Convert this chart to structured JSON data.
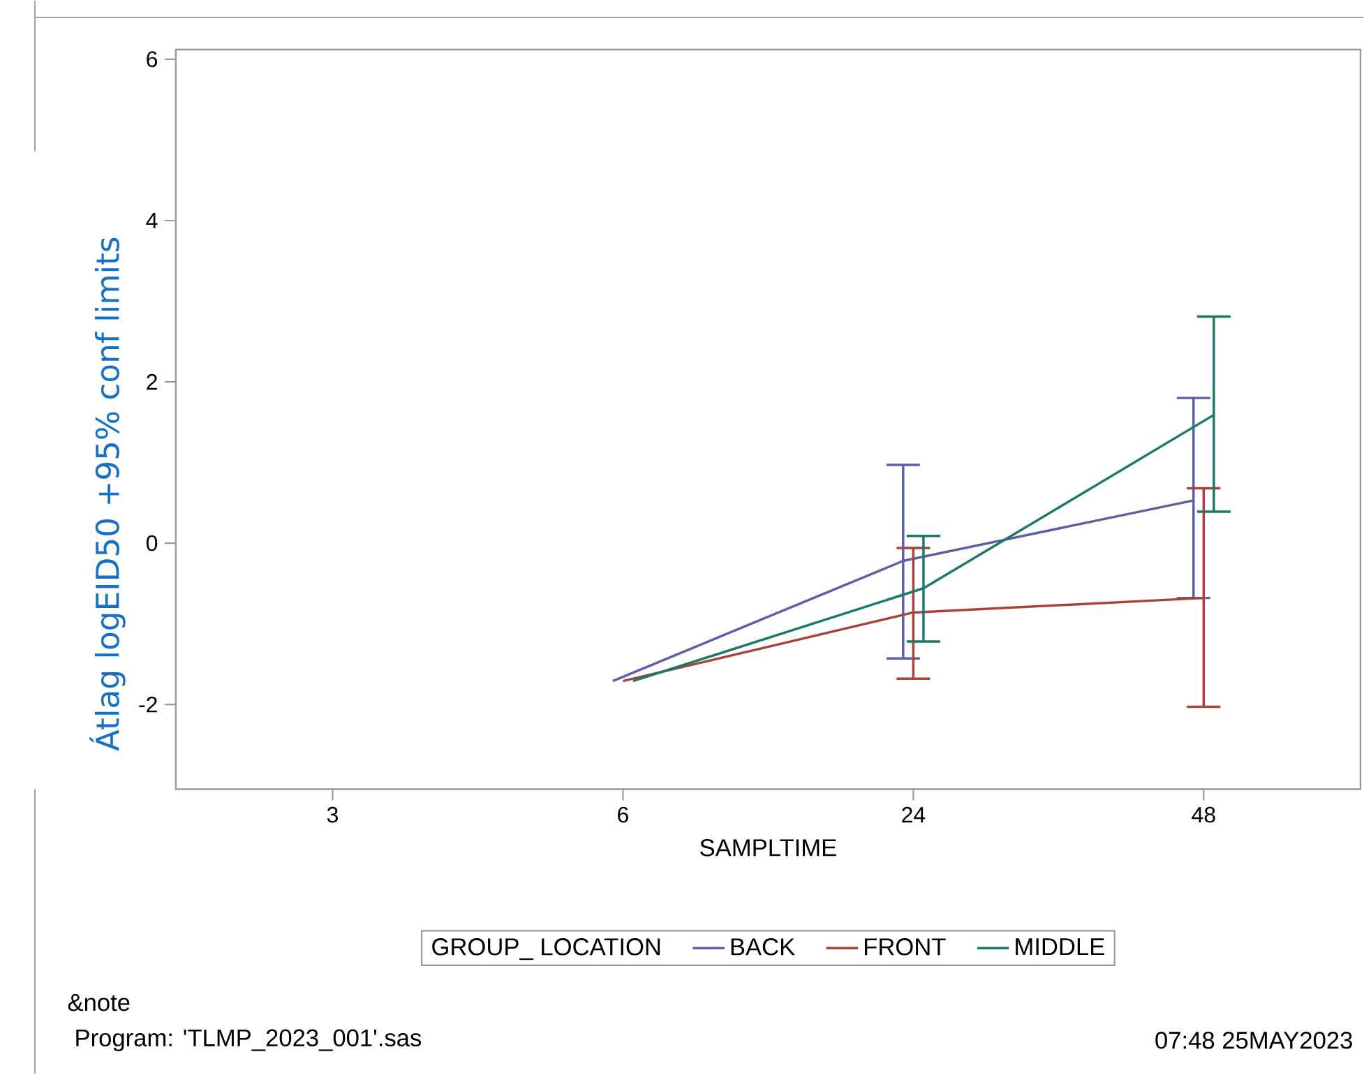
{
  "chart_data": {
    "type": "line",
    "xlabel": "SAMPLTIME",
    "ylabel": "Átlag logEID50  +95% conf limits",
    "legend_title": "GROUP_ LOCATION",
    "categories": [
      "3",
      "6",
      "24",
      "48"
    ],
    "series": [
      {
        "name": "BACK",
        "color": "#5a5fa8",
        "values": [
          null,
          -1.71,
          -0.22,
          0.53
        ],
        "errors": [
          null,
          null,
          [
            -1.43,
            0.97
          ],
          [
            -0.68,
            1.8
          ]
        ]
      },
      {
        "name": "FRONT",
        "color": "#a8433a",
        "values": [
          null,
          -1.71,
          -0.86,
          -0.68
        ],
        "errors": [
          null,
          null,
          [
            -1.68,
            -0.06
          ],
          [
            -2.03,
            0.68
          ]
        ]
      },
      {
        "name": "MIDDLE",
        "color": "#1a7a6a",
        "values": [
          null,
          -1.71,
          -0.56,
          1.59
        ],
        "errors": [
          null,
          null,
          [
            -1.22,
            0.09
          ],
          [
            0.39,
            2.81
          ]
        ]
      }
    ],
    "ylim": [
      -3.05,
      6.12
    ],
    "yticks": [
      -2,
      0,
      2,
      4,
      6
    ],
    "legend": "bottom",
    "annotations": [
      "&note",
      "Program: 'TLMP_2023_001'.sas",
      "07:48 25MAY2023"
    ]
  }
}
